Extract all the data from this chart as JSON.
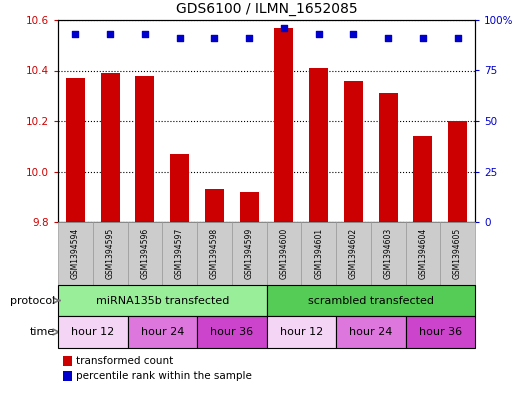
{
  "title": "GDS6100 / ILMN_1652085",
  "samples": [
    "GSM1394594",
    "GSM1394595",
    "GSM1394596",
    "GSM1394597",
    "GSM1394598",
    "GSM1394599",
    "GSM1394600",
    "GSM1394601",
    "GSM1394602",
    "GSM1394603",
    "GSM1394604",
    "GSM1394605"
  ],
  "bar_values": [
    10.37,
    10.39,
    10.38,
    10.07,
    9.93,
    9.92,
    10.57,
    10.41,
    10.36,
    10.31,
    10.14,
    10.2
  ],
  "percentile_values": [
    93,
    93,
    93,
    91,
    91,
    91,
    96,
    93,
    93,
    91,
    91,
    91
  ],
  "ylim_left": [
    9.8,
    10.6
  ],
  "ylim_right": [
    0,
    100
  ],
  "yticks_left": [
    9.8,
    10.0,
    10.2,
    10.4,
    10.6
  ],
  "yticks_right": [
    0,
    25,
    50,
    75,
    100
  ],
  "bar_color": "#cc0000",
  "dot_color": "#0000cc",
  "bar_baseline": 9.8,
  "protocol_groups": [
    {
      "label": "miRNA135b transfected",
      "start": 0,
      "end": 6,
      "color": "#99ee99"
    },
    {
      "label": "scrambled transfected",
      "start": 6,
      "end": 12,
      "color": "#55cc55"
    }
  ],
  "time_groups": [
    {
      "label": "hour 12",
      "start": 0,
      "end": 2,
      "color": "#f5d5f5"
    },
    {
      "label": "hour 24",
      "start": 2,
      "end": 4,
      "color": "#dd77dd"
    },
    {
      "label": "hour 36",
      "start": 4,
      "end": 6,
      "color": "#cc44cc"
    },
    {
      "label": "hour 12",
      "start": 6,
      "end": 8,
      "color": "#f5d5f5"
    },
    {
      "label": "hour 24",
      "start": 8,
      "end": 10,
      "color": "#dd77dd"
    },
    {
      "label": "hour 36",
      "start": 10,
      "end": 12,
      "color": "#cc44cc"
    }
  ],
  "protocol_label": "protocol",
  "time_label": "time",
  "legend_bar_label": "transformed count",
  "legend_dot_label": "percentile rank within the sample",
  "bar_color_legend": "#cc0000",
  "dot_color_legend": "#0000cc",
  "sample_bg_color": "#cccccc",
  "sample_border_color": "#999999",
  "fig_width": 5.13,
  "fig_height": 3.93,
  "fig_dpi": 100
}
